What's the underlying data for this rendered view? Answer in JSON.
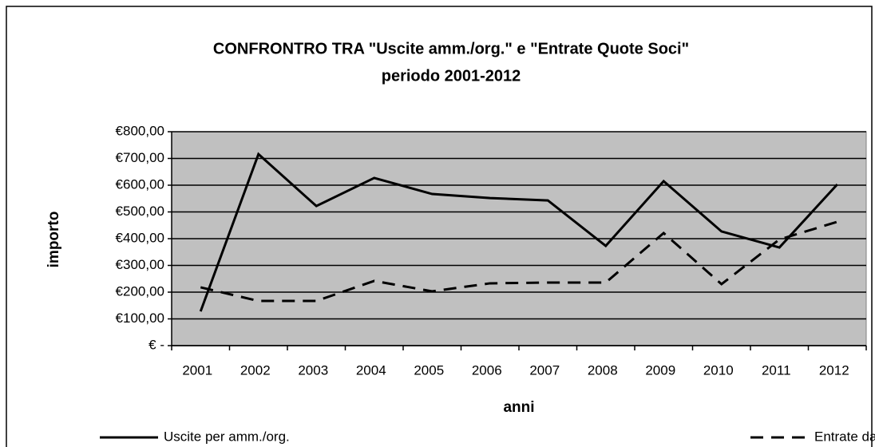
{
  "chart_data": {
    "type": "line",
    "title": "CONFRONTRO TRA \"Uscite amm./org.\" e \"Entrate Quote Soci\"",
    "subtitle": "periodo 2001-2012",
    "x_label": "anni",
    "y_label": "importo",
    "categories": [
      "2001",
      "2002",
      "2003",
      "2004",
      "2005",
      "2006",
      "2007",
      "2008",
      "2009",
      "2010",
      "2011",
      "2012"
    ],
    "series": [
      {
        "name": "Uscite per amm./org.",
        "color": "#000000",
        "style": "solid",
        "values": [
          128,
          716,
          522,
          627,
          567,
          552,
          543,
          373,
          615,
          427,
          367,
          603
        ]
      },
      {
        "name": "Entrate da Quote soci",
        "color": "#000000",
        "style": "dashed",
        "values": [
          218,
          167,
          167,
          242,
          203,
          233,
          236,
          236,
          421,
          230,
          397,
          463
        ]
      }
    ],
    "ylim": [
      0,
      800
    ],
    "yticks": [
      {
        "value": 0,
        "label": "€ -"
      },
      {
        "value": 100,
        "label": "€100,00"
      },
      {
        "value": 200,
        "label": "€200,00"
      },
      {
        "value": 300,
        "label": "€300,00"
      },
      {
        "value": 400,
        "label": "€400,00"
      },
      {
        "value": 500,
        "label": "€500,00"
      },
      {
        "value": 600,
        "label": "€600,00"
      },
      {
        "value": 700,
        "label": "€700,00"
      },
      {
        "value": 800,
        "label": "€800,00"
      }
    ],
    "grid": true,
    "plot_background": "#c0c0c0",
    "legend": "bottom"
  }
}
